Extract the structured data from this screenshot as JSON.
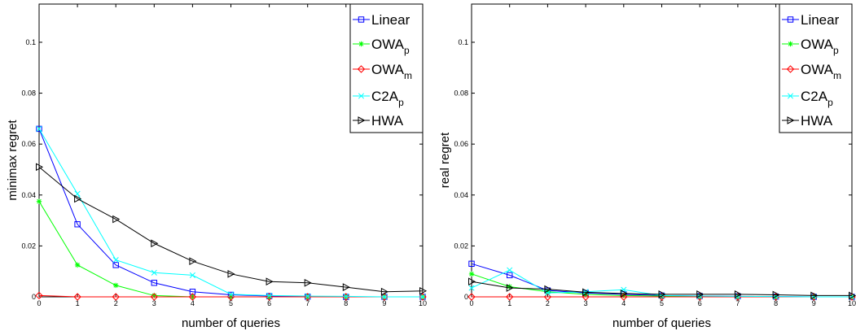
{
  "chart_data": [
    {
      "type": "line",
      "title": "",
      "xlabel": "number of queries",
      "ylabel": "minimax regret",
      "xlim": [
        0,
        10
      ],
      "ylim": [
        0,
        0.115
      ],
      "x_ticks": [
        0,
        1,
        2,
        3,
        4,
        5,
        6,
        7,
        8,
        9,
        10
      ],
      "y_ticks": [
        0,
        0.02,
        0.04,
        0.06,
        0.08,
        0.1
      ],
      "y_tick_labels": [
        "0",
        "0.02",
        "0.04",
        "0.06",
        "0.08",
        "0.1"
      ],
      "legend_position": "top-right",
      "grid": false,
      "x": [
        0,
        1,
        2,
        3,
        4,
        5,
        6,
        7,
        8,
        9,
        10
      ],
      "series": [
        {
          "name": "Linear",
          "sub": "",
          "color": "#0000ff",
          "marker": "square",
          "values": [
            0.066,
            0.0285,
            0.0125,
            0.0055,
            0.002,
            0.0008,
            0.0003,
            0.0001,
            0.0,
            0.0,
            0.0
          ]
        },
        {
          "name": "OWA",
          "sub": "p",
          "color": "#00ff00",
          "marker": "star",
          "values": [
            0.0375,
            0.0125,
            0.0045,
            0.0005,
            0.0,
            0.0,
            0.0,
            0.0,
            0.0,
            0.0,
            0.0
          ]
        },
        {
          "name": "OWA",
          "sub": "m",
          "color": "#ff0000",
          "marker": "diamond",
          "values": [
            0.0005,
            0.0,
            0.0,
            0.0,
            0.0,
            0.0,
            0.0,
            0.0,
            0.0,
            0.0,
            0.0
          ]
        },
        {
          "name": "C2A",
          "sub": "p",
          "color": "#00ffff",
          "marker": "x",
          "values": [
            0.066,
            0.0405,
            0.0145,
            0.0095,
            0.0085,
            0.001,
            0.0005,
            0.0003,
            0.0002,
            0.0,
            0.0
          ]
        },
        {
          "name": "HWA",
          "sub": "",
          "color": "#000000",
          "marker": "triangle-right",
          "values": [
            0.051,
            0.0385,
            0.0305,
            0.021,
            0.014,
            0.009,
            0.006,
            0.0055,
            0.0038,
            0.002,
            0.0023
          ]
        }
      ]
    },
    {
      "type": "line",
      "title": "",
      "xlabel": "number of queries",
      "ylabel": "real regret",
      "xlim": [
        0,
        10
      ],
      "ylim": [
        0,
        0.115
      ],
      "x_ticks": [
        0,
        1,
        2,
        3,
        4,
        5,
        6,
        7,
        8,
        9,
        10
      ],
      "y_ticks": [
        0,
        0.02,
        0.04,
        0.06,
        0.08,
        0.1
      ],
      "y_tick_labels": [
        "0",
        "0.02",
        "0.04",
        "0.06",
        "0.08",
        "0.1"
      ],
      "legend_position": "top-right",
      "grid": false,
      "x": [
        0,
        1,
        2,
        3,
        4,
        5,
        6,
        7,
        8,
        9,
        10
      ],
      "series": [
        {
          "name": "Linear",
          "sub": "",
          "color": "#0000ff",
          "marker": "square",
          "values": [
            0.013,
            0.0085,
            0.0025,
            0.0015,
            0.001,
            0.0005,
            0.0003,
            0.0002,
            0.0001,
            0.0,
            0.0
          ]
        },
        {
          "name": "OWA",
          "sub": "p",
          "color": "#00ff00",
          "marker": "star",
          "values": [
            0.009,
            0.004,
            0.002,
            0.001,
            0.0005,
            0.0003,
            0.0002,
            0.0001,
            0.0,
            0.0,
            0.0
          ]
        },
        {
          "name": "OWA",
          "sub": "m",
          "color": "#ff0000",
          "marker": "diamond",
          "values": [
            0.0,
            0.0,
            0.0,
            0.0,
            0.0,
            0.0,
            0.0,
            0.0,
            0.0,
            0.0,
            0.0
          ]
        },
        {
          "name": "C2A",
          "sub": "p",
          "color": "#00ffff",
          "marker": "x",
          "values": [
            0.0035,
            0.0105,
            0.0015,
            0.002,
            0.0028,
            0.0005,
            0.0003,
            0.0002,
            0.0001,
            0.0,
            0.0
          ]
        },
        {
          "name": "HWA",
          "sub": "",
          "color": "#000000",
          "marker": "triangle-right",
          "values": [
            0.006,
            0.0035,
            0.003,
            0.0018,
            0.0013,
            0.001,
            0.001,
            0.001,
            0.0008,
            0.0005,
            0.0005
          ]
        }
      ]
    }
  ]
}
